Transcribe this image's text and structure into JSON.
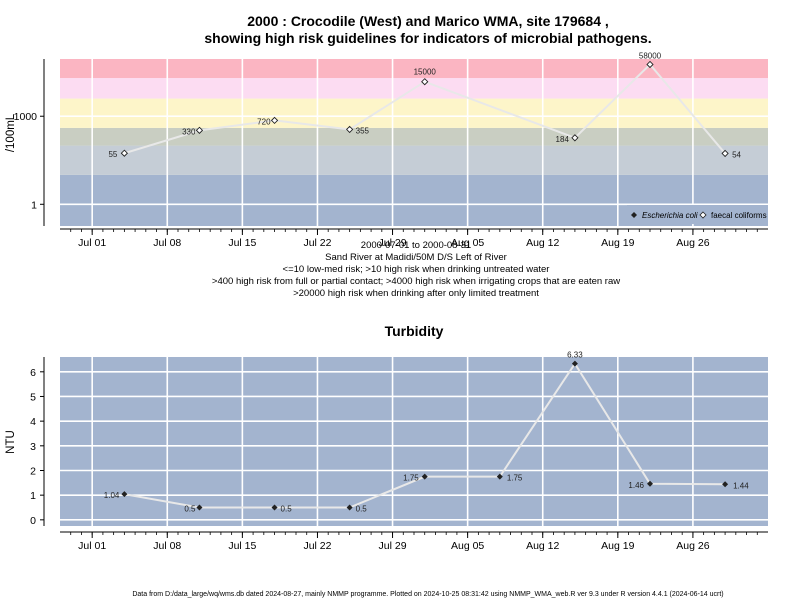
{
  "chart_data": [
    {
      "type": "line",
      "title_line1": "2000 : Crocodile (West) and Marico WMA, site 179684 ,",
      "title_line2": "showing high risk guidelines for indicators of microbial pathogens.",
      "ylabel": "/100mL",
      "yscale": "log",
      "ytick_labels": [
        "1",
        "1000"
      ],
      "x_tick_labels": [
        "Jul 01",
        "Jul 08",
        "Jul 15",
        "Jul 22",
        "Jul 29",
        "Aug 05",
        "Aug 12",
        "Aug 19",
        "Aug 26"
      ],
      "subtitle_lines": [
        "2000-07-01 to 2000-08-31",
        "Sand River at Madidi/50M D/S Left of River",
        "<=10 low-med risk; >10 high risk when drinking untreated water",
        ">400 high risk from full or partial contact; >4000 high risk when irrigating crops that are eaten raw",
        ">20000 high risk when drinking after only limited treatment"
      ],
      "bands": [
        {
          "from": 0.01,
          "to": 10,
          "color": "#a3b4cf"
        },
        {
          "from": 10,
          "to": 100,
          "color": "#c5cdd6"
        },
        {
          "from": 100,
          "to": 400,
          "color": "#c9cec2"
        },
        {
          "from": 400,
          "to": 4000,
          "color": "#fdf5c9"
        },
        {
          "from": 4000,
          "to": 20000,
          "color": "#fcdcf2"
        },
        {
          "from": 20000,
          "to": 100000,
          "color": "#fbb5c2"
        }
      ],
      "series": [
        {
          "name": "Escherichia coli",
          "marker": "filled-diamond",
          "x": [],
          "y": []
        },
        {
          "name": "faecal coliforms",
          "marker": "open-diamond",
          "x": [
            "2000-07-04",
            "2000-07-11",
            "2000-07-18",
            "2000-07-25",
            "2000-08-01",
            "2000-08-15",
            "2000-08-22",
            "2000-08-29"
          ],
          "y": [
            55,
            330,
            720,
            355,
            15000,
            184,
            58000,
            54
          ]
        }
      ],
      "data_labels": [
        "55",
        "330",
        "720",
        "355",
        "15000",
        "184",
        "58000",
        "54"
      ],
      "legend_position": "bottom-right"
    },
    {
      "type": "line",
      "title": "Turbidity",
      "ylabel": "NTU",
      "ylim": [
        -0.25,
        6.6
      ],
      "ytick_labels": [
        "0",
        "1",
        "2",
        "3",
        "4",
        "5",
        "6"
      ],
      "x_tick_labels": [
        "Jul 01",
        "Jul 08",
        "Jul 15",
        "Jul 22",
        "Jul 29",
        "Aug 05",
        "Aug 12",
        "Aug 19",
        "Aug 26"
      ],
      "series": [
        {
          "name": "Turbidity",
          "x": [
            "2000-07-04",
            "2000-07-11",
            "2000-07-18",
            "2000-07-25",
            "2000-08-01",
            "2000-08-08",
            "2000-08-15",
            "2000-08-22",
            "2000-08-29"
          ],
          "y": [
            1.04,
            0.5,
            0.5,
            0.5,
            1.75,
            1.75,
            6.33,
            1.46,
            1.44
          ]
        }
      ],
      "data_labels": [
        "1.04",
        "0.5",
        "0.5",
        "0.5",
        "1.75",
        "1.75",
        "6.33",
        "1.46",
        "1.44"
      ]
    }
  ],
  "footer": "Data from D:/data_large/wq/wms.db dated 2024-08-27, mainly NMMP programme. Plotted on 2024-10-25 08:31:42 using NMMP_WMA_web.R ver 9.3 under R version 4.4.1 (2024-06-14 ucrt)"
}
